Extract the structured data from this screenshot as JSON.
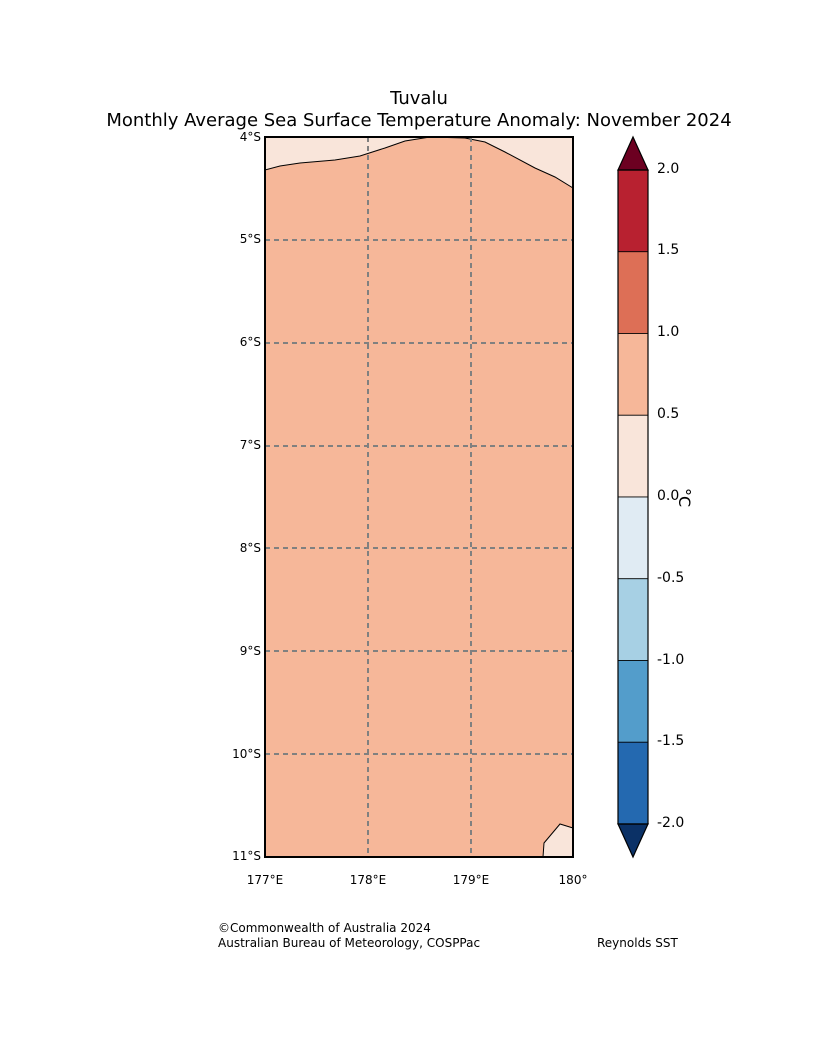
{
  "title": "Tuvalu",
  "subtitle": "Monthly Average Sea Surface Temperature Anomaly: November 2024",
  "map": {
    "lat_labels": [
      "4°S",
      "5°S",
      "6°S",
      "7°S",
      "8°S",
      "9°S",
      "10°S",
      "11°S"
    ],
    "lon_labels": [
      "177°E",
      "178°E",
      "179°E",
      "180°"
    ],
    "fill_colors": {
      "main": "#f6b799",
      "low": "#f9e5da"
    },
    "fill_anomaly_range": {
      "main": [
        0.5,
        1.0
      ],
      "low": [
        0.0,
        0.5
      ]
    }
  },
  "colorbar": {
    "unit": "°C",
    "ticks": [
      "2.0",
      "1.5",
      "1.0",
      "0.5",
      "0.0",
      "-0.5",
      "-1.0",
      "-1.5",
      "-2.0"
    ],
    "bands": [
      {
        "range": [
          1.5,
          2.0
        ],
        "color": "#b82130"
      },
      {
        "range": [
          1.0,
          1.5
        ],
        "color": "#dd6f56"
      },
      {
        "range": [
          0.5,
          1.0
        ],
        "color": "#f6b799"
      },
      {
        "range": [
          0.0,
          0.5
        ],
        "color": "#f9e5da"
      },
      {
        "range": [
          -0.5,
          0.0
        ],
        "color": "#e0ebf3"
      },
      {
        "range": [
          -1.0,
          -0.5
        ],
        "color": "#a7d0e4"
      },
      {
        "range": [
          -1.5,
          -1.0
        ],
        "color": "#539dcb"
      },
      {
        "range": [
          -2.0,
          -1.5
        ],
        "color": "#2469b0"
      }
    ],
    "over_color": "#6c0021",
    "under_color": "#0b3166"
  },
  "footer": {
    "copyright": "©Commonwealth of Australia 2024",
    "agency": "Australian Bureau of Meteorology, COSPPac",
    "source": "Reynolds SST"
  }
}
